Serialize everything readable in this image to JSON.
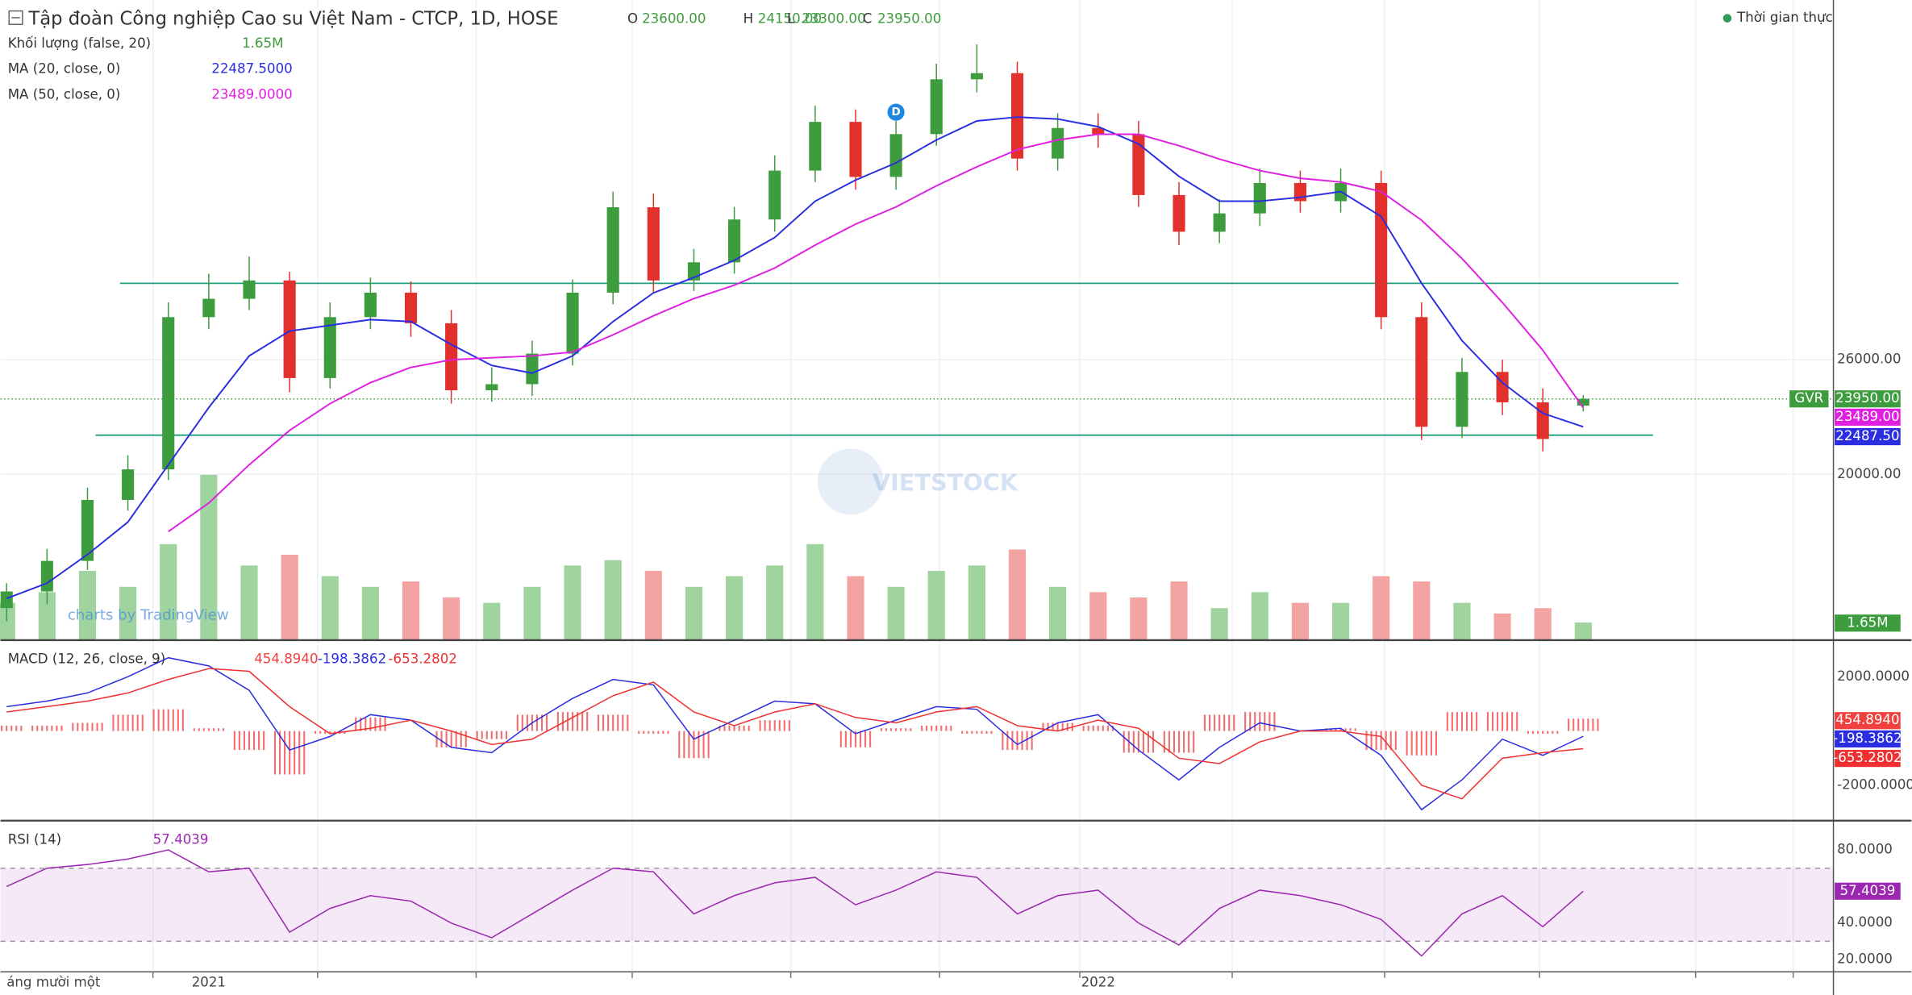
{
  "chart_data": [
    {
      "type": "candlestick",
      "title": "Tập đoàn Công nghiệp Cao su Việt Nam - CTCP, 1D, HOSE",
      "ohlc": [
        {
          "key": "O",
          "label": "23600.00"
        },
        {
          "key": "H",
          "label": "24150.00"
        },
        {
          "key": "L",
          "label": "23300.00"
        },
        {
          "key": "C",
          "label": "23950.00"
        }
      ],
      "status": "Thời gian thực",
      "symbol": "GVR",
      "close_label": "23950.00",
      "credit": "charts by TradingView",
      "watermark": "VIETSTOCK",
      "categories": [
        "áng mười một",
        null,
        null,
        null,
        null,
        "2021",
        null,
        null,
        null,
        null,
        null,
        null,
        null,
        null,
        null,
        null,
        null,
        null,
        null,
        null,
        null,
        null,
        null,
        null,
        null,
        null,
        null,
        "2022",
        null,
        null,
        null,
        null,
        null,
        null,
        null,
        null,
        null,
        null,
        null,
        null
      ],
      "open": [
        13000,
        13870,
        15470,
        18660,
        20260,
        28230,
        29190,
        30150,
        25040,
        28230,
        29510,
        27910,
        24400,
        24720,
        26320,
        29510,
        33980,
        30150,
        31100,
        33340,
        35900,
        38450,
        35570,
        37810,
        40680,
        41000,
        36530,
        38130,
        37810,
        34620,
        32700,
        33660,
        35250,
        34300,
        35250,
        28230,
        22490,
        25360,
        23770,
        23600
      ],
      "high": [
        14300,
        16100,
        19300,
        21000,
        29000,
        30500,
        31400,
        30600,
        29000,
        30300,
        30100,
        28600,
        25600,
        27000,
        30200,
        34800,
        34700,
        31800,
        34000,
        36700,
        39300,
        39100,
        38500,
        41500,
        42500,
        41600,
        38900,
        38900,
        38500,
        35300,
        34400,
        36000,
        35900,
        36000,
        35900,
        29000,
        26100,
        26000,
        24500,
        24150
      ],
      "low": [
        12300,
        13200,
        15000,
        18100,
        19700,
        27600,
        28600,
        24300,
        24500,
        27600,
        27200,
        23700,
        23800,
        24100,
        25700,
        28900,
        29500,
        29600,
        30500,
        32700,
        35300,
        34900,
        34900,
        37200,
        40000,
        35900,
        35900,
        37100,
        34000,
        32000,
        32100,
        33000,
        33700,
        33700,
        27600,
        21800,
        21900,
        23100,
        21200,
        23300
      ],
      "close": [
        13870,
        15470,
        18660,
        20260,
        28230,
        29190,
        30150,
        25040,
        28230,
        29510,
        27910,
        24400,
        24720,
        26320,
        29510,
        33980,
        30150,
        31100,
        33340,
        35900,
        38450,
        35570,
        37810,
        40680,
        41000,
        36530,
        38130,
        37810,
        34620,
        32700,
        33660,
        35250,
        34300,
        35250,
        28230,
        22490,
        25360,
        23770,
        21850,
        23950
      ],
      "up_color": "#3d9c3d",
      "down_color": "#e2312d",
      "series": [
        {
          "name": "MA (20, close, 0)",
          "color": "#2a2ee0",
          "legend_label": "22487.5000",
          "axis_label": "22487.50",
          "values": [
            13500,
            14300,
            15800,
            17500,
            20500,
            23500,
            26200,
            27500,
            27800,
            28100,
            28000,
            26800,
            25700,
            25300,
            26200,
            28000,
            29500,
            30300,
            31200,
            32400,
            34300,
            35400,
            36300,
            37500,
            38500,
            38700,
            38600,
            38200,
            37300,
            35600,
            34300,
            34300,
            34500,
            34800,
            33500,
            30000,
            27000,
            24800,
            23200,
            22487.5
          ]
        },
        {
          "name": "MA (50, close, 0)",
          "color": "#e020e0",
          "legend_label": "23489.0000",
          "axis_label": "23489.00",
          "values": [
            null,
            null,
            null,
            null,
            17000,
            18500,
            20500,
            22300,
            23700,
            24800,
            25600,
            26000,
            26100,
            26200,
            26400,
            27300,
            28300,
            29200,
            29900,
            30800,
            32000,
            33100,
            34000,
            35100,
            36100,
            37000,
            37500,
            37800,
            37800,
            37200,
            36500,
            35900,
            35500,
            35300,
            34800,
            33300,
            31300,
            29000,
            26500,
            23489
          ]
        }
      ],
      "volume": {
        "name": "Khối lượng (false, 20)",
        "last_label": "1.65M",
        "ylim": [
          0,
          60
        ],
        "values": [
          3.5,
          4.5,
          6.5,
          5,
          9,
          15.5,
          7,
          8,
          6,
          5,
          5.5,
          4,
          3.5,
          5,
          7,
          7.5,
          6.5,
          5,
          6,
          7,
          9,
          6,
          5,
          6.5,
          7,
          8.5,
          5,
          4.5,
          4,
          5.5,
          3,
          4.5,
          3.5,
          3.5,
          6,
          5.5,
          3.5,
          2.5,
          3,
          1.65
        ]
      },
      "trend_lines": [
        30000,
        22050
      ],
      "events": [
        {
          "index": 22,
          "label": "D"
        }
      ],
      "ylim": [
        11320,
        44830
      ],
      "yticks": [
        {
          "value": 20000,
          "label": "20000.00"
        },
        {
          "value": 26000,
          "label": "26000.00"
        }
      ]
    },
    {
      "type": "macd",
      "title": "MACD (12, 26, close, 9)",
      "ylim": [
        -3303,
        3348
      ],
      "yticks": [
        {
          "value": 2000,
          "label": "2000.0000"
        },
        {
          "value": -2000,
          "label": "-2000.0000"
        }
      ],
      "series": [
        {
          "name": "histogram",
          "color": "#f04040",
          "label": "454.8940",
          "values": [
            200,
            200,
            300,
            600,
            800,
            100,
            -700,
            -1600,
            -100,
            500,
            0,
            -600,
            -300,
            600,
            700,
            600,
            -100,
            -1000,
            200,
            400,
            0,
            -600,
            100,
            200,
            -100,
            -700,
            300,
            200,
            -800,
            -800,
            600,
            700,
            0,
            100,
            -700,
            -900,
            700,
            700,
            -100,
            454.894
          ]
        },
        {
          "name": "macd",
          "color": "#2a2ee0",
          "label": "-198.3862",
          "values": [
            900,
            1100,
            1400,
            2000,
            2700,
            2400,
            1500,
            -700,
            -200,
            600,
            400,
            -600,
            -800,
            300,
            1200,
            1900,
            1700,
            -300,
            400,
            1100,
            1000,
            -100,
            400,
            900,
            800,
            -500,
            300,
            600,
            -700,
            -1800,
            -600,
            300,
            0,
            100,
            -900,
            -2900,
            -1800,
            -300,
            -900,
            -198.3862
          ]
        },
        {
          "name": "signal",
          "color": "#f03030",
          "label": "-653.2802",
          "values": [
            700,
            900,
            1100,
            1400,
            1900,
            2300,
            2200,
            900,
            -100,
            100,
            400,
            0,
            -500,
            -300,
            500,
            1300,
            1800,
            700,
            200,
            700,
            1000,
            500,
            300,
            700,
            900,
            200,
            0,
            400,
            100,
            -1000,
            -1200,
            -400,
            0,
            0,
            -200,
            -2000,
            -2500,
            -1000,
            -800,
            -653.2802
          ]
        }
      ]
    },
    {
      "type": "rsi",
      "title": "RSI (14)",
      "color": "#9c27b0",
      "label": "57.4039",
      "band": [
        30,
        70
      ],
      "ylim": [
        13.3,
        96
      ],
      "yticks": [
        {
          "value": 20,
          "label": "20.0000"
        },
        {
          "value": 40,
          "label": "40.0000"
        },
        {
          "value": 80,
          "label": "80.0000"
        }
      ],
      "values": [
        60,
        70,
        72,
        75,
        80,
        68,
        70,
        35,
        48,
        55,
        52,
        40,
        32,
        45,
        58,
        70,
        68,
        45,
        55,
        62,
        65,
        50,
        58,
        68,
        65,
        45,
        55,
        58,
        40,
        28,
        48,
        58,
        55,
        50,
        42,
        22,
        45,
        55,
        38,
        57.4039
      ]
    }
  ]
}
